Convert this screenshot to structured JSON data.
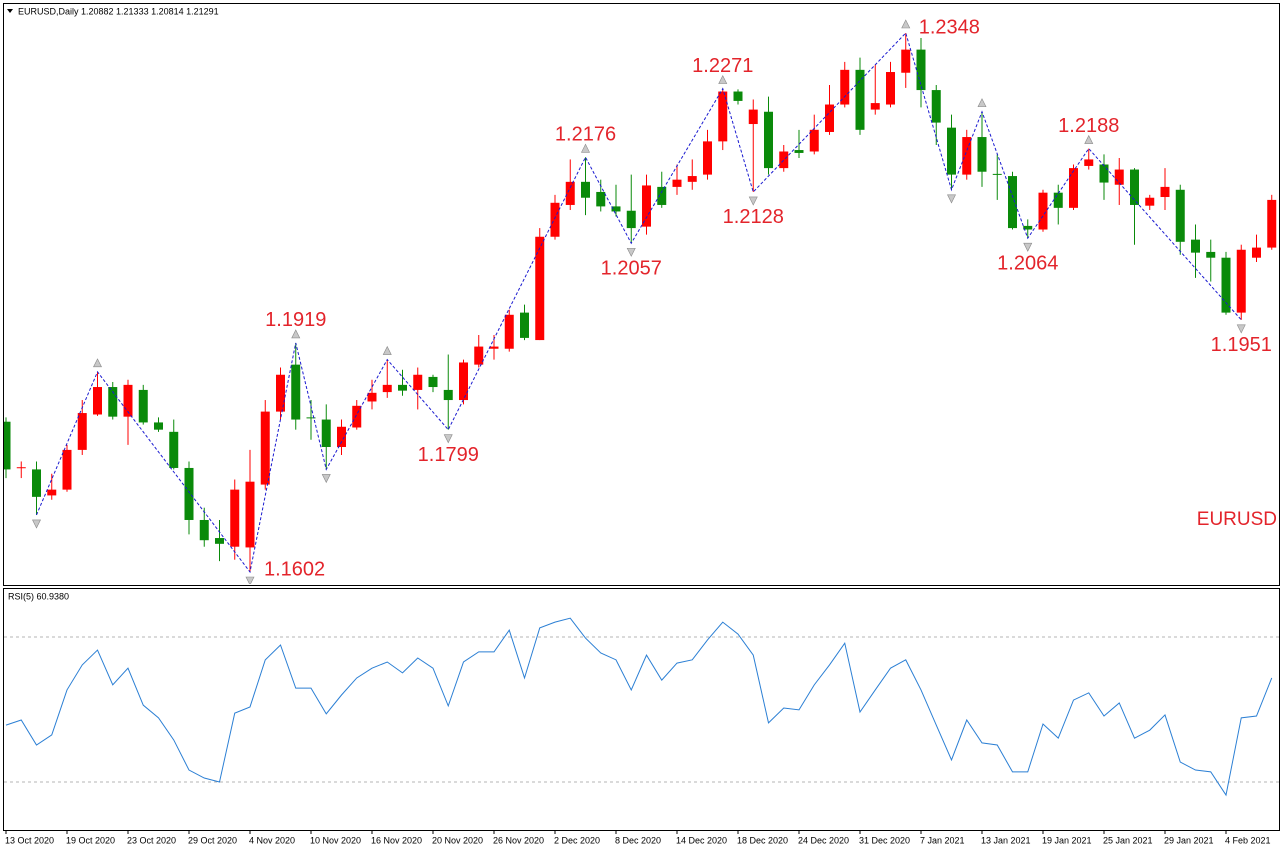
{
  "chart_data": [
    {
      "type": "candlestick",
      "title": "EURUSD,Daily 1.20882 1.21333 1.20814 1.21291",
      "watermark": "EURUSD",
      "categories": [
        "13 Oct 2020",
        null,
        null,
        null,
        "19 Oct 2020",
        null,
        null,
        null,
        "23 Oct 2020",
        null,
        null,
        null,
        "29 Oct 2020",
        null,
        null,
        null,
        "4 Nov 2020",
        null,
        null,
        null,
        "10 Nov 2020",
        null,
        null,
        null,
        "16 Nov 2020",
        null,
        null,
        null,
        "20 Nov 2020",
        null,
        null,
        null,
        "26 Nov 2020",
        null,
        null,
        null,
        "2 Dec 2020",
        null,
        null,
        null,
        "8 Dec 2020",
        null,
        null,
        null,
        "14 Dec 2020",
        null,
        null,
        null,
        "18 Dec 2020",
        null,
        null,
        null,
        "24 Dec 2020",
        null,
        null,
        null,
        "31 Dec 2020",
        null,
        null,
        null,
        "7 Jan 2021",
        null,
        null,
        null,
        "13 Jan 2021",
        null,
        null,
        null,
        "19 Jan 2021",
        null,
        null,
        null,
        "25 Jan 2021",
        null,
        null,
        null,
        "29 Jan 2021",
        null,
        null,
        null,
        "4 Feb 2021",
        null,
        null,
        null
      ],
      "open": [
        1.181,
        1.1746,
        1.1744,
        1.1708,
        1.1716,
        1.1771,
        1.182,
        1.1858,
        1.1817,
        1.1854,
        1.1809,
        1.1796,
        1.1746,
        1.1674,
        1.1649,
        1.1637,
        1.1636,
        1.1723,
        1.1824,
        1.1889,
        1.1816,
        1.1813,
        1.1775,
        1.1802,
        1.1838,
        1.1851,
        1.1861,
        1.1854,
        1.1872,
        1.1854,
        1.184,
        1.1889,
        1.1911,
        1.1911,
        1.1961,
        1.1923,
        1.2066,
        1.211,
        1.2142,
        1.2128,
        1.2108,
        1.2102,
        1.208,
        1.2135,
        1.2135,
        1.2142,
        1.2152,
        1.2198,
        1.2267,
        1.2222,
        1.2239,
        1.2161,
        1.2186,
        1.2184,
        1.2211,
        1.2249,
        1.2297,
        1.2242,
        1.2249,
        1.2293,
        1.2325,
        1.2269,
        1.2217,
        1.2152,
        1.2204,
        1.2153,
        1.215,
        1.2081,
        1.2076,
        1.2127,
        1.2106,
        1.2164,
        1.2166,
        1.2138,
        1.2159,
        1.2109,
        1.2121,
        1.2131,
        1.2062,
        1.2045,
        1.2037,
        1.1961,
        1.2037,
        1.2051
      ],
      "high": [
        1.1816,
        1.1755,
        1.1755,
        1.1738,
        1.1778,
        1.184,
        1.1879,
        1.1865,
        1.1868,
        1.1861,
        1.1816,
        1.1813,
        1.1755,
        1.1691,
        1.1674,
        1.173,
        1.1771,
        1.184,
        1.1885,
        1.1919,
        1.184,
        1.1834,
        1.1813,
        1.184,
        1.1868,
        1.1896,
        1.1882,
        1.1885,
        1.1875,
        1.1903,
        1.1896,
        1.193,
        1.193,
        1.1965,
        1.1972,
        1.2078,
        1.2124,
        1.2173,
        1.2176,
        1.2145,
        1.2138,
        1.2152,
        1.2152,
        1.2156,
        1.2166,
        1.2173,
        1.2214,
        1.2271,
        1.227,
        1.2256,
        1.226,
        1.2193,
        1.2214,
        1.2235,
        1.2276,
        1.2308,
        1.2314,
        1.2304,
        1.2308,
        1.2348,
        1.2341,
        1.2276,
        1.2235,
        1.2214,
        1.2239,
        1.218,
        1.2156,
        1.209,
        1.2131,
        1.2138,
        1.2166,
        1.2188,
        1.218,
        1.2175,
        1.2161,
        1.2124,
        1.2161,
        1.2138,
        1.2083,
        1.2062,
        1.2045,
        1.2055,
        1.2069,
        1.2124
      ],
      "low": [
        1.1732,
        1.1732,
        1.1681,
        1.1702,
        1.1713,
        1.1764,
        1.1818,
        1.1813,
        1.1778,
        1.1806,
        1.1796,
        1.1744,
        1.1654,
        1.1637,
        1.1617,
        1.1619,
        1.1602,
        1.1716,
        1.1813,
        1.1799,
        1.1785,
        1.1744,
        1.1764,
        1.1799,
        1.1827,
        1.1843,
        1.1846,
        1.1827,
        1.1851,
        1.1799,
        1.1834,
        1.1885,
        1.1896,
        1.1907,
        1.1923,
        1.1923,
        1.2062,
        1.2103,
        1.2096,
        1.2101,
        1.2094,
        1.2057,
        1.2069,
        1.2106,
        1.2124,
        1.2131,
        1.2145,
        1.2186,
        1.2249,
        1.2128,
        1.2152,
        1.2156,
        1.2175,
        1.218,
        1.2207,
        1.2245,
        1.2207,
        1.2235,
        1.2245,
        1.2272,
        1.2245,
        1.2193,
        1.2131,
        1.2145,
        1.2135,
        1.2117,
        1.2076,
        1.2064,
        1.2073,
        1.2083,
        1.2103,
        1.2159,
        1.2117,
        1.211,
        1.2055,
        1.2103,
        1.2103,
        1.2041,
        1.2009,
        1.2004,
        1.1958,
        1.1951,
        1.2031,
        1.2048
      ],
      "close": [
        1.1744,
        1.1747,
        1.1706,
        1.1716,
        1.1771,
        1.1822,
        1.1858,
        1.1817,
        1.1861,
        1.1809,
        1.1799,
        1.1746,
        1.1674,
        1.1646,
        1.1641,
        1.1716,
        1.1727,
        1.1824,
        1.1875,
        1.1813,
        1.1815,
        1.1775,
        1.1803,
        1.1832,
        1.185,
        1.1861,
        1.1853,
        1.1875,
        1.1858,
        1.184,
        1.1892,
        1.1914,
        1.1914,
        1.1958,
        1.1926,
        1.2066,
        1.2113,
        1.2142,
        1.212,
        1.2108,
        1.2101,
        1.2078,
        1.2137,
        1.211,
        1.2145,
        1.215,
        1.2198,
        1.2267,
        1.2254,
        1.2242,
        1.2161,
        1.2184,
        1.2182,
        1.2214,
        1.2249,
        1.2297,
        1.2214,
        1.2251,
        1.2294,
        1.2325,
        1.2269,
        1.2224,
        1.2152,
        1.2204,
        1.2156,
        1.2152,
        1.2078,
        1.2076,
        1.2127,
        1.2106,
        1.2161,
        1.2173,
        1.2141,
        1.2159,
        1.211,
        1.212,
        1.2135,
        1.2059,
        1.2044,
        1.2037,
        1.1961,
        1.2048,
        1.2051,
        1.2117
      ],
      "up_color": "#ff0000",
      "down_color": "#0a8a0a",
      "label_color": "#e3242b",
      "zigzag": {
        "bars": [
          2,
          6,
          16,
          19,
          21,
          25,
          29,
          38,
          41,
          47,
          49,
          59,
          62,
          64,
          67,
          71,
          81
        ],
        "values": [
          1.1681,
          1.1879,
          1.1602,
          1.1919,
          1.1744,
          1.1896,
          1.1799,
          1.2176,
          1.2057,
          1.2271,
          1.2128,
          1.2348,
          1.2131,
          1.2239,
          1.2064,
          1.2188,
          1.1951
        ],
        "show_label": [
          false,
          false,
          true,
          true,
          false,
          false,
          true,
          true,
          true,
          true,
          true,
          true,
          false,
          false,
          true,
          true,
          true
        ],
        "color": "#1a1ad0"
      }
    },
    {
      "type": "line",
      "title": "RSI(5) 60.9380",
      "values": [
        45.7,
        47.1,
        40.2,
        43.0,
        55.4,
        62.3,
        66.4,
        56.8,
        61.4,
        51.2,
        47.7,
        41.6,
        33.3,
        31.1,
        30.0,
        49.0,
        50.7,
        63.7,
        67.8,
        55.9,
        55.9,
        48.8,
        54.0,
        58.7,
        61.4,
        63.1,
        60.1,
        64.2,
        61.4,
        51.0,
        63.1,
        65.9,
        65.9,
        71.9,
        58.7,
        72.5,
        74.1,
        75.2,
        69.7,
        65.6,
        63.7,
        55.4,
        65.0,
        58.1,
        62.8,
        63.7,
        69.2,
        74.1,
        70.8,
        65.0,
        46.3,
        50.4,
        49.9,
        56.8,
        62.3,
        68.3,
        49.3,
        55.4,
        61.4,
        63.7,
        55.4,
        45.7,
        36.1,
        47.1,
        40.8,
        40.2,
        32.8,
        32.8,
        46.0,
        42.1,
        52.6,
        54.6,
        48.2,
        51.8,
        42.1,
        44.3,
        48.5,
        35.5,
        33.3,
        32.8,
        26.4,
        47.7,
        48.2,
        58.7
      ],
      "color": "#2b7fd4",
      "levels": [
        30,
        70
      ]
    }
  ]
}
